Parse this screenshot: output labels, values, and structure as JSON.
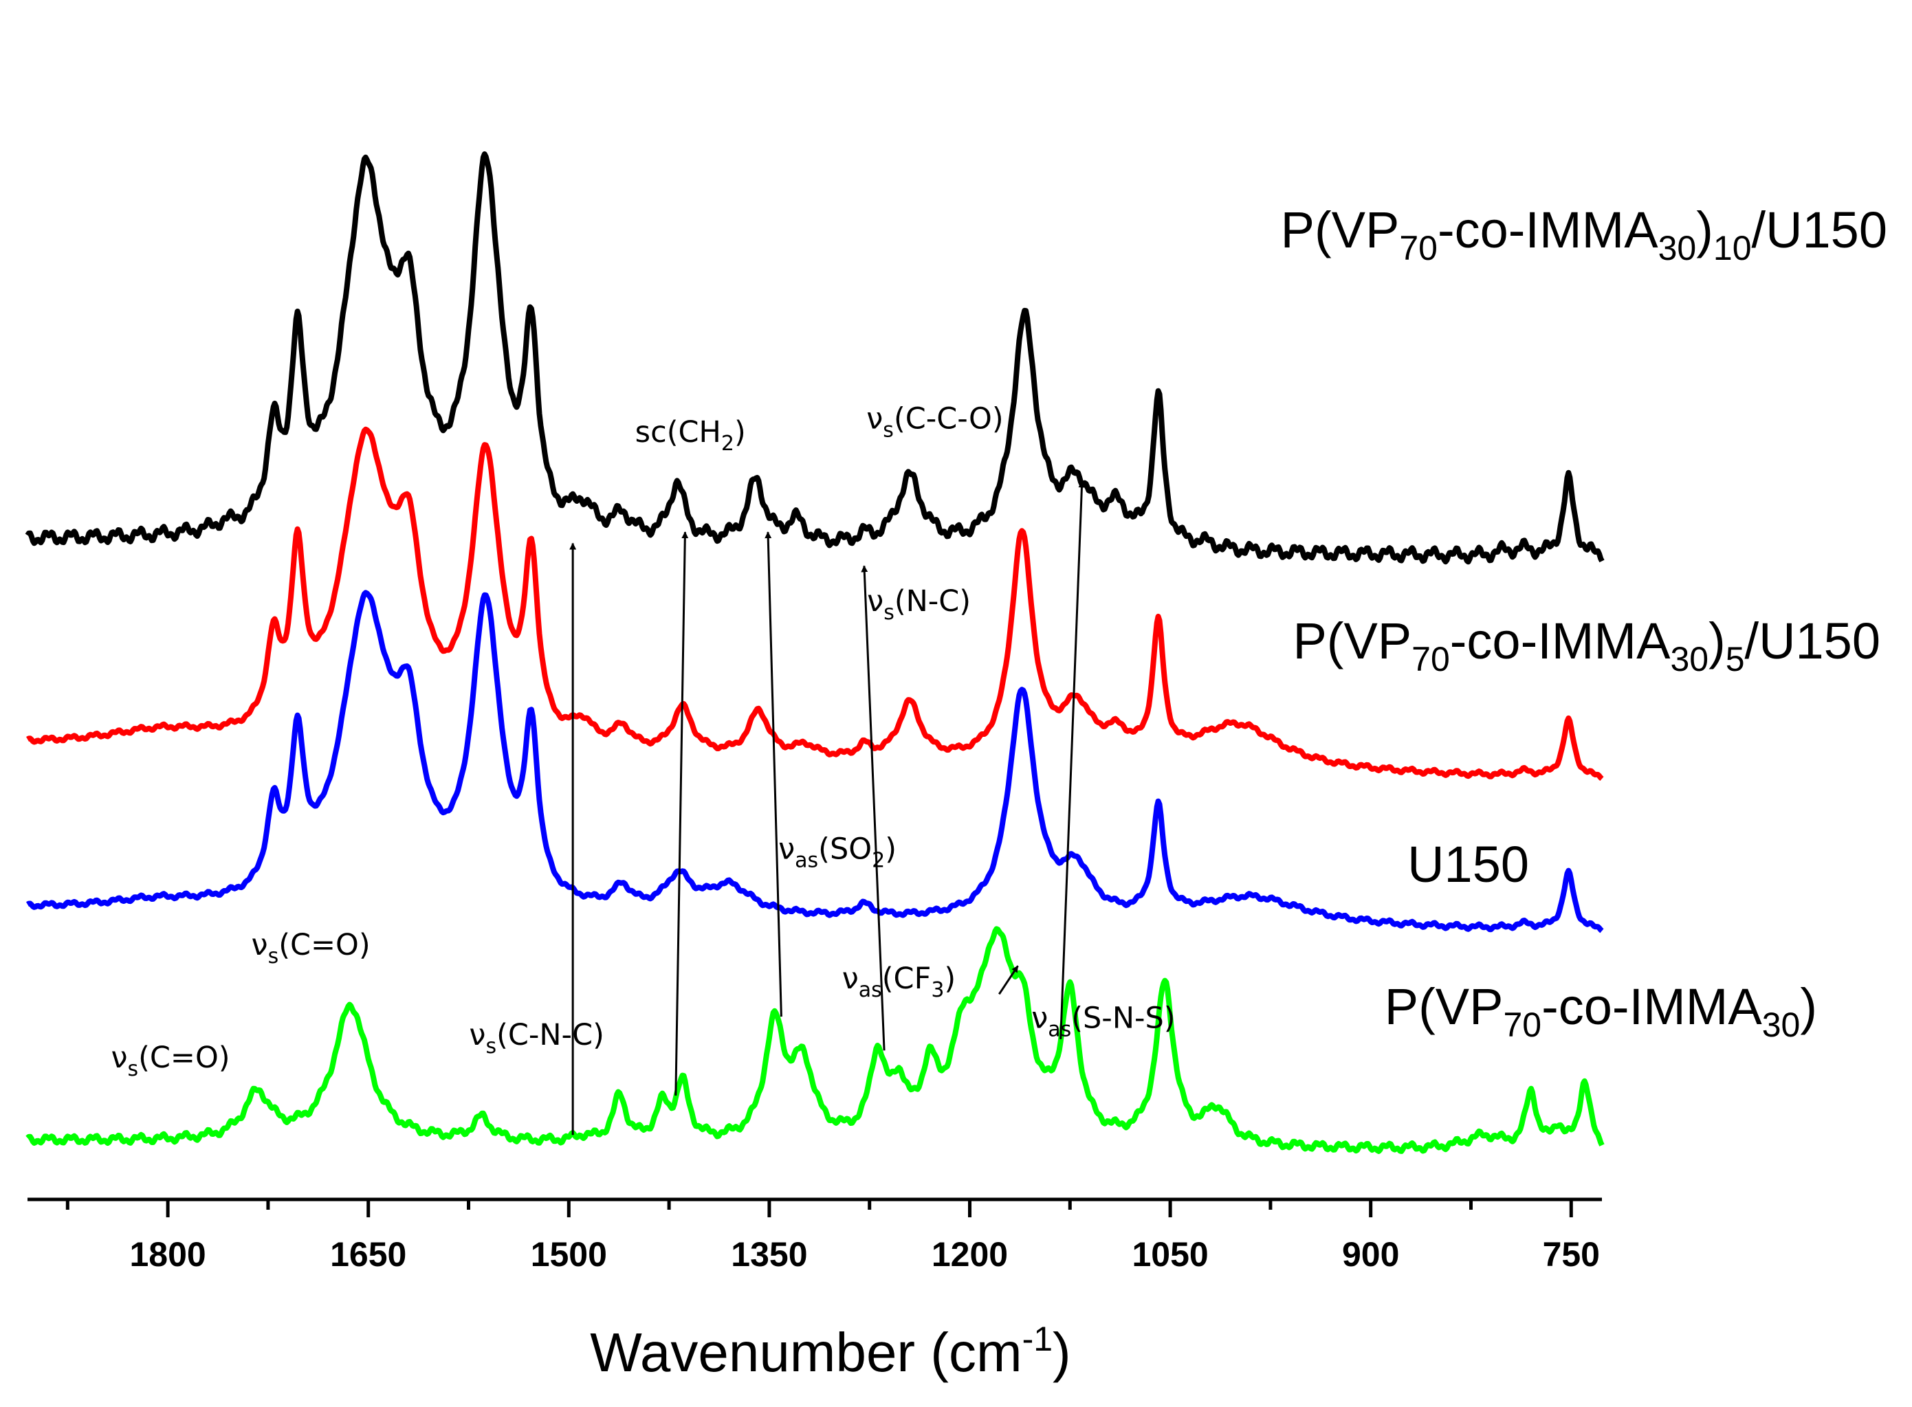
{
  "chart_data": {
    "type": "line",
    "title": "",
    "xlabel": "Wavenumber (cm",
    "xlabel_sup": "-1",
    "xlabel_close": ")",
    "ylabel": "",
    "x_reversed": true,
    "xlim": [
      1905,
      727
    ],
    "ylim": [
      -0.02,
      1.02
    ],
    "x_ticks": [
      1800,
      1650,
      1500,
      1350,
      1200,
      1050,
      900,
      750
    ],
    "y_ticks_shown": false,
    "legend": "inline labels at right",
    "series": [
      {
        "name": "P(VP70-co-IMMA30)10/U150",
        "label_parts": [
          "P(VP",
          "70",
          "-co-IMMA",
          "30",
          ")",
          "10",
          "/U150"
        ],
        "color": "#000000",
        "baseline": 0.552,
        "slope": -0.015,
        "noise": 0.004,
        "peaks": [
          [
            1758,
            0.004,
            8
          ],
          [
            1721,
            0.075,
            6
          ],
          [
            1703,
            0.145,
            6
          ],
          [
            1652,
            0.31,
            20
          ],
          [
            1620,
            0.15,
            12
          ],
          [
            1562,
            0.32,
            13
          ],
          [
            1528,
            0.16,
            6
          ],
          [
            1490,
            0.022,
            10
          ],
          [
            1460,
            0.018,
            8
          ],
          [
            1419,
            0.05,
            7
          ],
          [
            1360,
            0.055,
            8
          ],
          [
            1330,
            0.02,
            8
          ],
          [
            1279,
            0.006,
            6
          ],
          [
            1245,
            0.06,
            11
          ],
          [
            1159,
            0.2,
            11
          ],
          [
            1120,
            0.05,
            14
          ],
          [
            1090,
            0.03,
            12
          ],
          [
            1059,
            0.13,
            5
          ],
          [
            1025,
            0.005,
            12
          ],
          [
            752,
            0.068,
            5
          ],
          [
            785,
            0.006,
            8
          ],
          [
            800,
            0.004,
            6
          ]
        ]
      },
      {
        "name": "P(VP70-co-IMMA30)5/U150",
        "label_parts": [
          "P(VP",
          "70",
          "-co-IMMA",
          "30",
          ")",
          "5",
          "/U150"
        ],
        "color": "#ff0000",
        "baseline": 0.37,
        "slope": -0.03,
        "noise": 0.0015,
        "peaks": [
          [
            1805,
            0.012,
            50
          ],
          [
            1721,
            0.07,
            6
          ],
          [
            1703,
            0.14,
            6
          ],
          [
            1652,
            0.26,
            22
          ],
          [
            1620,
            0.13,
            12
          ],
          [
            1562,
            0.25,
            13
          ],
          [
            1528,
            0.15,
            6
          ],
          [
            1490,
            0.018,
            10
          ],
          [
            1460,
            0.018,
            8
          ],
          [
            1415,
            0.04,
            9
          ],
          [
            1358,
            0.04,
            9
          ],
          [
            1323,
            0.01,
            10
          ],
          [
            1279,
            0.01,
            6
          ],
          [
            1245,
            0.05,
            10
          ],
          [
            1161,
            0.2,
            10
          ],
          [
            1120,
            0.045,
            14
          ],
          [
            1090,
            0.02,
            12
          ],
          [
            1059,
            0.115,
            5
          ],
          [
            1000,
            0.04,
            40
          ],
          [
            785,
            0.004,
            8
          ],
          [
            752,
            0.05,
            5
          ]
        ]
      },
      {
        "name": "U150",
        "label_parts": [
          "U150"
        ],
        "color": "#0000ff",
        "baseline": 0.225,
        "slope": -0.02,
        "noise": 0.0015,
        "peaks": [
          [
            1810,
            0.006,
            40
          ],
          [
            1721,
            0.068,
            6
          ],
          [
            1703,
            0.12,
            6
          ],
          [
            1652,
            0.26,
            22
          ],
          [
            1620,
            0.12,
            12
          ],
          [
            1562,
            0.26,
            13
          ],
          [
            1528,
            0.14,
            6
          ],
          [
            1460,
            0.018,
            8
          ],
          [
            1418,
            0.03,
            12
          ],
          [
            1380,
            0.025,
            20
          ],
          [
            1279,
            0.01,
            8
          ],
          [
            1161,
            0.2,
            12
          ],
          [
            1120,
            0.04,
            14
          ],
          [
            1059,
            0.095,
            5
          ],
          [
            990,
            0.025,
            50
          ],
          [
            785,
            0.004,
            8
          ],
          [
            752,
            0.05,
            5
          ]
        ]
      },
      {
        "name": "P(VP70-co-IMMA30)",
        "label_parts": [
          "P(VP",
          "70",
          "-co-IMMA",
          "30",
          ")"
        ],
        "color": "#00ff00",
        "baseline": 0.02,
        "slope": -0.01,
        "noise": 0.0025,
        "peaks": [
          [
            1733,
            0.04,
            12
          ],
          [
            1663,
            0.12,
            16
          ],
          [
            1565,
            0.02,
            8
          ],
          [
            1490,
            0.004,
            8
          ],
          [
            1462,
            0.04,
            6
          ],
          [
            1430,
            0.03,
            6
          ],
          [
            1415,
            0.05,
            6
          ],
          [
            1346,
            0.1,
            9
          ],
          [
            1325,
            0.065,
            10
          ],
          [
            1269,
            0.07,
            7
          ],
          [
            1253,
            0.04,
            7
          ],
          [
            1230,
            0.05,
            7
          ],
          [
            1205,
            0.06,
            10
          ],
          [
            1180,
            0.17,
            18
          ],
          [
            1125,
            0.12,
            8
          ],
          [
            1160,
            0.06,
            8
          ],
          [
            1054,
            0.14,
            8
          ],
          [
            1015,
            0.03,
            12
          ],
          [
            815,
            0.012,
            18
          ],
          [
            780,
            0.05,
            5
          ],
          [
            760,
            0.018,
            5
          ],
          [
            740,
            0.06,
            5
          ]
        ]
      }
    ],
    "annotations": [
      {
        "id": "sc-ch2",
        "base": "sc(CH",
        "sub": "2",
        "post": ")",
        "x": 1409,
        "y": 0.64
      },
      {
        "id": "vs-cco",
        "base": "ν",
        "sub": "s",
        "post": "(C-C-O)",
        "x": 1226,
        "y": 0.652
      },
      {
        "id": "vs-nc",
        "base": "ν",
        "sub": "s",
        "post": "(N-C)",
        "x": 1238,
        "y": 0.49
      },
      {
        "id": "vas-so2",
        "base": "ν",
        "sub": "as",
        "post": "(SO",
        "sub2": "2",
        "post2": ")",
        "x": 1299,
        "y": 0.27
      },
      {
        "id": "vas-cf3",
        "base": "ν",
        "sub": "as",
        "post": "(CF",
        "sub2": "3",
        "post2": ")",
        "x": 1253,
        "y": 0.155
      },
      {
        "id": "vas-sns",
        "base": "ν",
        "sub": "as",
        "post": "(S-N-S)",
        "x": 1100,
        "y": 0.12
      },
      {
        "id": "vs-co-upper",
        "base": "ν",
        "sub": "s",
        "post": "(C=O)",
        "x": 1693,
        "y": 0.185
      },
      {
        "id": "vs-co-lower",
        "base": "ν",
        "sub": "s",
        "post": "(C=O)",
        "x": 1798,
        "y": 0.085
      },
      {
        "id": "vs-cnc",
        "base": "ν",
        "sub": "s",
        "post": "(C-N-C)",
        "x": 1524,
        "y": 0.105
      }
    ],
    "arrows": [
      {
        "from": [
          1497,
          0.025
        ],
        "to": [
          1497,
          0.55
        ]
      },
      {
        "from": [
          1420,
          0.06
        ],
        "to": [
          1413,
          0.56
        ]
      },
      {
        "from": [
          1341,
          0.13
        ],
        "to": [
          1351,
          0.56
        ]
      },
      {
        "from": [
          1264,
          0.1
        ],
        "to": [
          1279,
          0.53
        ]
      },
      {
        "from": [
          1178,
          0.15
        ],
        "to": [
          1164,
          0.175
        ]
      },
      {
        "from": [
          1132,
          0.11
        ],
        "to": [
          1116,
          0.605
        ]
      }
    ]
  }
}
